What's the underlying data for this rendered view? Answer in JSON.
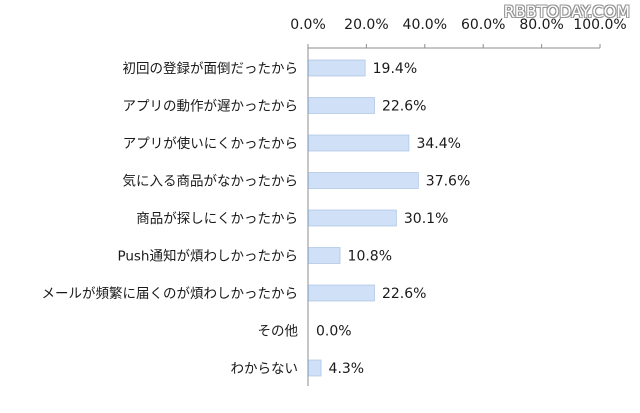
{
  "watermark": "RBBTODAY.COM",
  "colors": {
    "bar_fill": "#cfe0f7",
    "bar_stroke": "#9fbbe0",
    "axis": "#8c8c8c",
    "text": "#1a1a1a"
  },
  "chart_data": {
    "type": "bar",
    "orientation": "horizontal",
    "categories": [
      "初回の登録が面倒だったから",
      "アプリの動作が遅かったから",
      "アプリが使いにくかったから",
      "気に入る商品がなかったから",
      "商品が探しにくかったから",
      "Push通知が煩わしかったから",
      "メールが頻繁に届くのが煩わしかったから",
      "その他",
      "わからない"
    ],
    "values": [
      19.4,
      22.6,
      34.4,
      37.6,
      30.1,
      10.8,
      22.6,
      0.0,
      4.3
    ],
    "value_labels": [
      "19.4%",
      "22.6%",
      "34.4%",
      "37.6%",
      "30.1%",
      "10.8%",
      "22.6%",
      "0.0%",
      "4.3%"
    ],
    "xlim": [
      0,
      100
    ],
    "x_ticks": [
      0,
      20,
      40,
      60,
      80,
      100
    ],
    "x_tick_labels": [
      "0.0%",
      "20.0%",
      "40.0%",
      "60.0%",
      "80.0%",
      "100.0%"
    ],
    "x_axis_position": "top",
    "grid": false,
    "legend": "none"
  }
}
